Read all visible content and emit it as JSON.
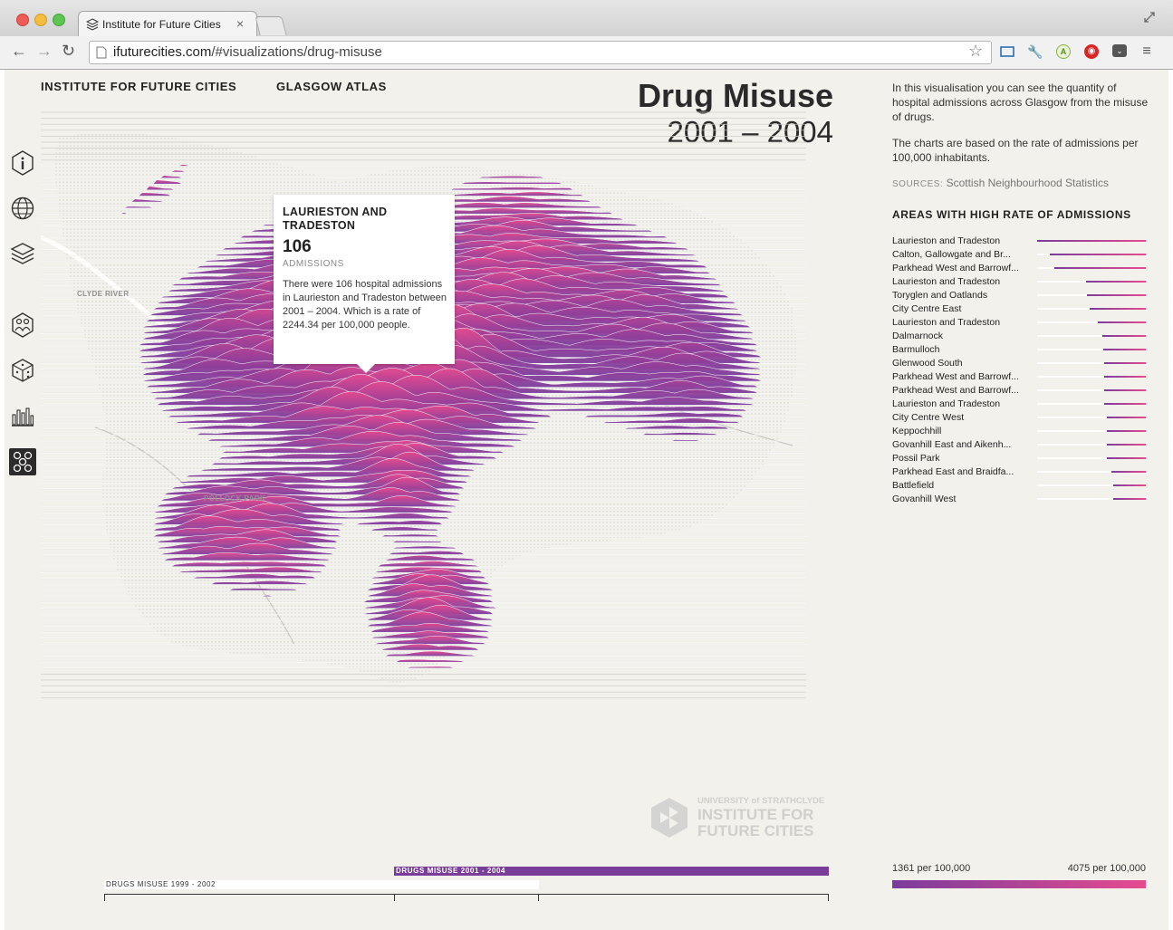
{
  "browser": {
    "tab_title": "Institute for Future Cities",
    "url_host": "ifuturecities.com",
    "url_path": "/#visualizations/drug-misuse"
  },
  "header": {
    "brand": "INSTITUTE FOR FUTURE CITIES",
    "section": "GLASGOW ATLAS",
    "title": "Drug Misuse",
    "period": "2001 – 2004"
  },
  "sidebar": {
    "items": [
      "info-icon",
      "globe-icon",
      "layers-icon",
      "people-icon",
      "dice-icon",
      "bar-chart-icon",
      "heatmap-icon"
    ]
  },
  "map": {
    "labels": {
      "river": "CLYDE RIVER",
      "park": "POLLOCK PARK"
    }
  },
  "tooltip": {
    "area": "LAURIESTON AND TRADESTON",
    "value": "106",
    "unit": "ADMISSIONS",
    "description": "There were 106 hospital admissions in Laurieston and Tradeston between 2001 – 2004. Which is a rate of 2244.34 per 100,000 people."
  },
  "panel": {
    "intro1": "In this visualisation you can see the quantity of hospital admissions across Glasgow from the misuse of drugs.",
    "intro2": "The charts are based on the rate of admissions per 100,000 inhabitants.",
    "sources_key": "SOURCES:",
    "sources_value": "Scottish Neighbourhood Statistics",
    "areas_heading": "AREAS WITH HIGH RATE OF ADMISSIONS",
    "areas": [
      {
        "name": "Laurieston and Tradeston",
        "share": 1.0
      },
      {
        "name": "Calton, Gallowgate and Br...",
        "share": 0.88
      },
      {
        "name": "Parkhead West and Barrowf...",
        "share": 0.84
      },
      {
        "name": "Laurieston and Tradeston",
        "share": 0.55
      },
      {
        "name": "Toryglen and Oatlands",
        "share": 0.54
      },
      {
        "name": "City Centre East",
        "share": 0.52
      },
      {
        "name": "Laurieston and Tradeston",
        "share": 0.44
      },
      {
        "name": "Dalmarnock",
        "share": 0.4
      },
      {
        "name": "Barmulloch",
        "share": 0.39
      },
      {
        "name": "Glenwood South",
        "share": 0.38
      },
      {
        "name": "Parkhead West and Barrowf...",
        "share": 0.38
      },
      {
        "name": "Parkhead West and Barrowf...",
        "share": 0.38
      },
      {
        "name": "Laurieston and Tradeston",
        "share": 0.38
      },
      {
        "name": "City Centre West",
        "share": 0.36
      },
      {
        "name": "Keppochhill",
        "share": 0.36
      },
      {
        "name": "Govanhill East and Aikenh...",
        "share": 0.36
      },
      {
        "name": "Possil Park",
        "share": 0.36
      },
      {
        "name": "Parkhead East and Braidfa...",
        "share": 0.32
      },
      {
        "name": "Battlefield",
        "share": 0.3
      },
      {
        "name": "Govanhill West",
        "share": 0.3
      }
    ],
    "legend_min": "1361 per 100,000",
    "legend_max": "4075 per 100,000"
  },
  "logo": {
    "line1": "UNIVERSITY of STRATHCLYDE",
    "line2": "INSTITUTE FOR FUTURE CITIES"
  },
  "timeline": {
    "active_label": "DRUGS MISUSE 2001 - 2004",
    "prev_label": "DRUGS MISUSE 1999 - 2002"
  },
  "colors": {
    "purple": "#7b3c9c",
    "pink": "#e54b8f",
    "background": "#f2f1ec"
  }
}
